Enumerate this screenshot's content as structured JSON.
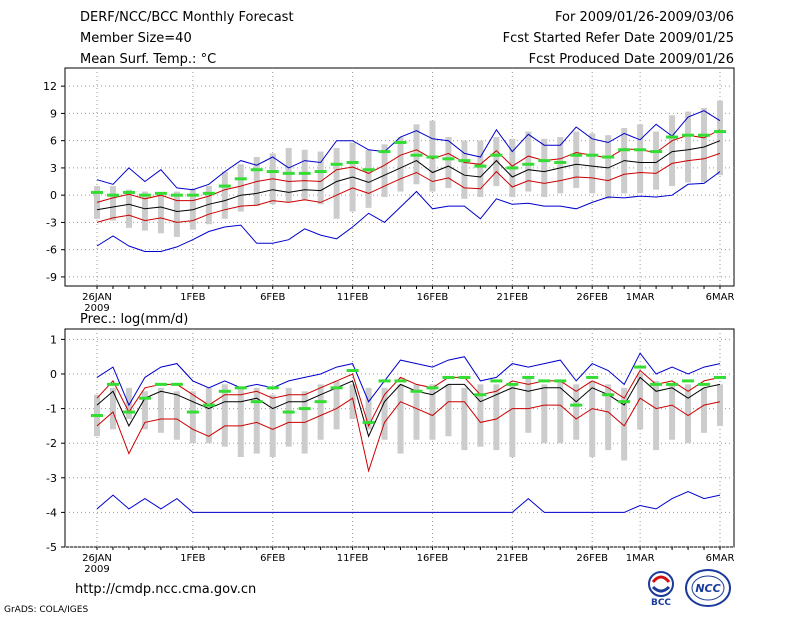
{
  "header": {
    "title": "DERF/NCC/BCC Monthly Forecast",
    "member": "Member Size=40",
    "variable": "Mean Surf. Temp.: °C",
    "period": "For 2009/01/26-2009/03/06",
    "started": "Fcst Started Refer Date 2009/01/25",
    "produced": "Fcst Produced Date 2009/01/26"
  },
  "footer": {
    "url": "http://cmdp.ncc.cma.gov.cn",
    "grads": "GrADS: COLA/IGES"
  },
  "logos": {
    "bcc": "BCC",
    "ncc": "NCC"
  },
  "colors": {
    "max": "#0000cc",
    "p75": "#cc0000",
    "mean": "#000000",
    "obs": "#33dd33",
    "box": "#cccccc"
  },
  "chart_data": [
    {
      "type": "line",
      "title": "",
      "ylabel": "Mean Surf. Temp. (°C)",
      "ylim": [
        -10,
        14
      ],
      "yticks": [
        12,
        9,
        6,
        3,
        0,
        -3,
        -6,
        -9
      ],
      "xtick_labels": [
        "26JAN",
        "1FEB",
        "6FEB",
        "11FEB",
        "16FEB",
        "21FEB",
        "26FEB",
        "1MAR",
        "6MAR"
      ],
      "xtick_days": [
        0,
        6,
        11,
        16,
        21,
        26,
        31,
        34,
        39
      ],
      "year_label": "2009",
      "days": 40,
      "series": [
        {
          "name": "max",
          "values": [
            1.7,
            1.2,
            3.0,
            1.5,
            2.8,
            0.8,
            0.6,
            1.2,
            2.6,
            3.8,
            3.3,
            4.2,
            3.0,
            3.8,
            3.6,
            6.0,
            6.0,
            5.0,
            4.8,
            6.4,
            7.1,
            6.2,
            6.0,
            4.6,
            4.2,
            7.2,
            4.8,
            6.7,
            5.5,
            5.5,
            7.5,
            6.2,
            5.8,
            6.8,
            6.1,
            7.8,
            6.5,
            8.6,
            9.3,
            8.2
          ]
        },
        {
          "name": "p75",
          "values": [
            -0.8,
            -0.3,
            0.1,
            -0.4,
            0.0,
            -0.6,
            -0.6,
            -0.1,
            0.6,
            1.0,
            1.5,
            1.8,
            1.5,
            1.6,
            1.5,
            2.8,
            3.1,
            2.4,
            3.3,
            4.4,
            5.0,
            4.0,
            4.6,
            3.6,
            3.4,
            4.9,
            3.2,
            4.3,
            3.8,
            4.0,
            4.7,
            4.4,
            4.1,
            5.1,
            5.0,
            4.7,
            6.0,
            6.6,
            6.3,
            7.2
          ]
        },
        {
          "name": "mean",
          "values": [
            -1.6,
            -1.3,
            -1.0,
            -1.5,
            -1.3,
            -1.8,
            -1.6,
            -1.0,
            -0.6,
            0.0,
            0.2,
            0.6,
            0.3,
            0.6,
            0.5,
            1.5,
            2.0,
            1.4,
            2.2,
            3.0,
            3.8,
            2.5,
            3.2,
            2.2,
            2.0,
            3.8,
            2.0,
            2.8,
            2.6,
            3.0,
            3.4,
            3.2,
            3.0,
            3.8,
            3.6,
            3.6,
            4.8,
            5.0,
            5.3,
            6.0
          ]
        },
        {
          "name": "p25",
          "values": [
            -3.0,
            -2.5,
            -2.2,
            -2.8,
            -2.5,
            -3.0,
            -2.8,
            -2.1,
            -1.6,
            -1.2,
            -1.1,
            -0.6,
            -0.8,
            -0.5,
            -0.8,
            0.0,
            0.8,
            0.2,
            1.0,
            1.8,
            2.5,
            1.5,
            1.9,
            0.8,
            0.7,
            2.6,
            0.9,
            1.6,
            1.3,
            1.6,
            2.0,
            1.9,
            1.6,
            2.3,
            2.5,
            2.4,
            3.5,
            3.8,
            4.0,
            4.6
          ]
        },
        {
          "name": "min",
          "values": [
            -5.6,
            -4.5,
            -5.6,
            -6.2,
            -6.2,
            -5.7,
            -4.9,
            -4.0,
            -3.5,
            -3.3,
            -5.3,
            -5.3,
            -4.9,
            -3.7,
            -4.4,
            -4.8,
            -3.5,
            -2.0,
            -3.0,
            -1.3,
            0.4,
            -1.5,
            -1.2,
            -1.2,
            -2.6,
            -0.4,
            -1.0,
            -0.9,
            -1.2,
            -1.2,
            -1.5,
            -0.8,
            -0.2,
            -0.3,
            -0.1,
            -0.2,
            0.0,
            1.2,
            1.3,
            2.6
          ]
        }
      ],
      "boxes": {
        "low": [
          -2.6,
          -2.8,
          -3.6,
          -3.9,
          -4.2,
          -4.6,
          -3.8,
          -3.2,
          -2.6,
          -1.8,
          -1.2,
          -1.0,
          -0.8,
          -0.6,
          -1.0,
          -2.6,
          -1.8,
          -1.4,
          -0.2,
          0.4,
          1.2,
          0.4,
          0.8,
          -0.4,
          -0.2,
          1.0,
          -0.2,
          0.4,
          -0.2,
          0.2,
          0.8,
          0.2,
          -0.4,
          0.2,
          0.2,
          0.6,
          1.0,
          1.4,
          1.4,
          2.2
        ],
        "high": [
          1.0,
          1.0,
          0.6,
          0.4,
          0.2,
          0.4,
          0.6,
          1.0,
          2.6,
          3.4,
          4.2,
          4.6,
          5.2,
          5.0,
          4.8,
          5.2,
          5.8,
          5.0,
          5.6,
          6.4,
          7.8,
          8.2,
          6.4,
          6.0,
          6.0,
          6.4,
          6.2,
          7.0,
          6.2,
          6.4,
          7.0,
          6.8,
          6.6,
          7.4,
          7.8,
          7.0,
          8.8,
          9.2,
          9.6,
          10.4
        ]
      },
      "obs": [
        0.3,
        0.0,
        0.3,
        0.0,
        0.2,
        0.0,
        0.0,
        0.2,
        1.0,
        1.8,
        2.8,
        2.6,
        2.4,
        2.4,
        2.6,
        3.4,
        3.6,
        2.8,
        4.8,
        5.8,
        4.4,
        4.2,
        4.0,
        3.8,
        3.2,
        4.4,
        3.0,
        3.4,
        3.8,
        3.6,
        4.4,
        4.4,
        4.2,
        5.0,
        5.0,
        4.8,
        6.4,
        6.6,
        6.6,
        7.0
      ]
    },
    {
      "type": "line",
      "title": "Prec.: log(mm/d)",
      "ylabel": "log(mm/d)",
      "ylim": [
        -5,
        1.3
      ],
      "yticks": [
        1,
        0,
        -1,
        -2,
        -3,
        -4,
        -5
      ],
      "xtick_labels": [
        "26JAN",
        "1FEB",
        "6FEB",
        "11FEB",
        "16FEB",
        "21FEB",
        "26FEB",
        "1MAR",
        "6MAR"
      ],
      "xtick_days": [
        0,
        6,
        11,
        16,
        21,
        26,
        31,
        34,
        39
      ],
      "year_label": "2009",
      "days": 40,
      "series": [
        {
          "name": "max",
          "values": [
            -0.1,
            0.2,
            -0.9,
            -0.1,
            0.2,
            0.3,
            -0.2,
            -0.4,
            -0.2,
            -0.4,
            -0.3,
            -0.4,
            -0.2,
            -0.1,
            0.0,
            0.2,
            0.3,
            -0.8,
            -0.2,
            0.4,
            0.3,
            0.2,
            0.4,
            0.5,
            -0.2,
            -0.1,
            0.3,
            0.2,
            0.3,
            0.4,
            -0.2,
            0.3,
            0.1,
            -0.3,
            0.6,
            0.0,
            0.2,
            0.0,
            0.2,
            0.3
          ]
        },
        {
          "name": "p75",
          "values": [
            -0.7,
            -0.2,
            -1.1,
            -0.4,
            -0.3,
            -0.3,
            -0.6,
            -0.9,
            -0.6,
            -0.6,
            -0.5,
            -0.7,
            -0.6,
            -0.6,
            -0.4,
            -0.2,
            0.0,
            -1.5,
            -0.6,
            -0.1,
            -0.3,
            -0.4,
            -0.1,
            -0.1,
            -0.6,
            -0.5,
            -0.2,
            -0.3,
            -0.2,
            -0.2,
            -0.5,
            -0.2,
            -0.4,
            -0.7,
            0.1,
            -0.3,
            -0.2,
            -0.5,
            -0.2,
            -0.1
          ]
        },
        {
          "name": "mean",
          "values": [
            -0.9,
            -0.5,
            -1.5,
            -0.7,
            -0.5,
            -0.6,
            -0.8,
            -1.0,
            -0.8,
            -0.8,
            -0.7,
            -1.0,
            -0.8,
            -0.8,
            -0.6,
            -0.4,
            -0.2,
            -1.8,
            -0.8,
            -0.3,
            -0.5,
            -0.6,
            -0.3,
            -0.3,
            -0.8,
            -0.6,
            -0.4,
            -0.5,
            -0.4,
            -0.4,
            -0.8,
            -0.4,
            -0.6,
            -0.9,
            -0.1,
            -0.5,
            -0.4,
            -0.7,
            -0.4,
            -0.3
          ]
        },
        {
          "name": "p25",
          "values": [
            -1.5,
            -1.1,
            -2.3,
            -1.4,
            -1.3,
            -1.3,
            -1.6,
            -1.8,
            -1.5,
            -1.5,
            -1.4,
            -1.6,
            -1.4,
            -1.4,
            -1.2,
            -1.0,
            -0.7,
            -2.8,
            -1.4,
            -0.8,
            -1.0,
            -1.2,
            -0.8,
            -0.8,
            -1.4,
            -1.3,
            -1.0,
            -1.0,
            -0.9,
            -0.9,
            -1.3,
            -1.0,
            -1.1,
            -1.5,
            -0.7,
            -1.0,
            -0.9,
            -1.2,
            -0.9,
            -0.8
          ]
        },
        {
          "name": "min",
          "values": [
            -3.9,
            -3.5,
            -3.9,
            -3.6,
            -3.9,
            -3.6,
            -4.0,
            -4.0,
            -4.0,
            -4.0,
            -4.0,
            -4.0,
            -4.0,
            -4.0,
            -4.0,
            -4.0,
            -4.0,
            -4.0,
            -4.0,
            -4.0,
            -4.0,
            -4.0,
            -4.0,
            -4.0,
            -4.0,
            -4.0,
            -4.0,
            -3.6,
            -4.0,
            -4.0,
            -4.0,
            -4.0,
            -4.0,
            -4.0,
            -3.8,
            -3.9,
            -3.6,
            -3.4,
            -3.6,
            -3.5
          ]
        }
      ],
      "boxes": {
        "low": [
          -1.8,
          -1.6,
          -1.3,
          -1.6,
          -1.7,
          -1.9,
          -2.0,
          -2.0,
          -2.1,
          -2.4,
          -2.3,
          -2.4,
          -2.1,
          -2.3,
          -1.9,
          -1.6,
          -1.3,
          -1.6,
          -1.9,
          -2.3,
          -1.9,
          -1.9,
          -1.8,
          -2.2,
          -2.1,
          -2.2,
          -2.4,
          -1.7,
          -2.0,
          -2.0,
          -1.9,
          -2.4,
          -2.2,
          -2.5,
          -1.6,
          -2.2,
          -1.9,
          -2.0,
          -1.7,
          -1.5
        ],
        "high": [
          -0.6,
          -0.4,
          -0.4,
          -0.5,
          -0.4,
          -0.5,
          -0.5,
          -0.4,
          -0.3,
          -0.4,
          -0.4,
          -0.6,
          -0.4,
          -0.5,
          -0.3,
          -0.2,
          -0.3,
          -0.4,
          -0.4,
          -0.3,
          -0.3,
          -0.3,
          -0.3,
          -0.4,
          -0.3,
          -0.3,
          -0.3,
          -0.1,
          -0.3,
          -0.2,
          -0.3,
          -0.2,
          -0.3,
          -0.4,
          0.0,
          -0.2,
          -0.3,
          -0.3,
          -0.4,
          -0.3
        ]
      },
      "obs": [
        -1.2,
        -0.3,
        -1.1,
        -0.7,
        -0.3,
        -0.3,
        -1.1,
        -0.9,
        -0.5,
        -0.4,
        -0.8,
        -0.4,
        -1.1,
        -1.0,
        -0.8,
        -0.4,
        0.1,
        -1.4,
        -0.2,
        -0.2,
        -0.5,
        -0.4,
        -0.1,
        -0.1,
        -0.6,
        -0.2,
        -0.3,
        -0.1,
        -0.2,
        -0.2,
        -0.9,
        -0.1,
        -0.6,
        -0.8,
        0.2,
        -0.3,
        -0.3,
        -0.2,
        -0.3,
        -0.1
      ]
    }
  ]
}
